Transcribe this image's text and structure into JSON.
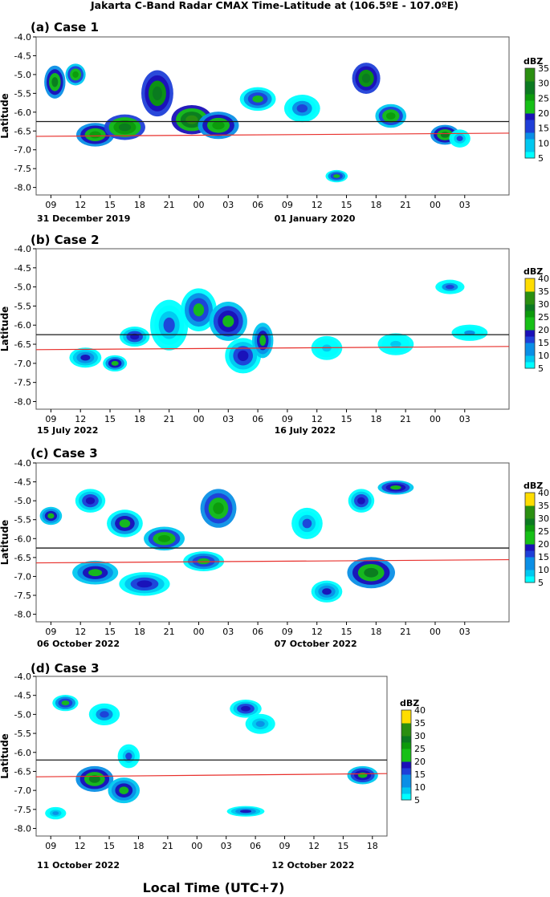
{
  "figure": {
    "title": "Jakarta C-Band Radar CMAX Time-Latitude at (106.5ºE - 107.0ºE)",
    "bottom_label": "Local Time (UTC+7)",
    "ylabel": "Latitude",
    "colorbar_unit": "dBZ"
  },
  "colors": {
    "red_line": "#e8302c",
    "black_line": "#1a1a1a",
    "palette": [
      "#00ffff",
      "#00c8f0",
      "#0a8fe6",
      "#1f3fd8",
      "#1a10b8",
      "#16c016",
      "#0c9a0c",
      "#0b7a20",
      "#2a8f10",
      "#ffdd00"
    ]
  },
  "chart_data": [
    {
      "type": "heatmap",
      "title": "(a) Case 1",
      "ylabel": "Latitude",
      "y_ticks": [
        "-4.0",
        "-4.5",
        "-5.0",
        "-5.5",
        "-6.0",
        "-6.5",
        "-7.0",
        "-7.5",
        "-8.0"
      ],
      "ylim": [
        -8.2,
        -4.0
      ],
      "x_ticks": [
        "09",
        "12",
        "15",
        "18",
        "21",
        "00",
        "03",
        "06",
        "09",
        "12",
        "15",
        "18",
        "21",
        "00",
        "03"
      ],
      "dates": [
        "31 December 2019",
        "01 January 2020"
      ],
      "colorbar": {
        "unit": "dBZ",
        "ticks": [
          "5",
          "10",
          "15",
          "20",
          "25",
          "30",
          "35"
        ],
        "range": [
          5,
          35
        ]
      },
      "black_line_latitude": -6.25,
      "red_line_latitude": -6.6,
      "echo_blobs": [
        {
          "t": 9.4,
          "lat": -5.2,
          "dt": 1.5,
          "dlat": 0.75,
          "dbz": 27
        },
        {
          "t": 11.5,
          "lat": -5.0,
          "dt": 1.4,
          "dlat": 0.45,
          "dbz": 24
        },
        {
          "t": 13.5,
          "lat": -6.6,
          "dt": 3.2,
          "dlat": 0.5,
          "dbz": 26
        },
        {
          "t": 16.5,
          "lat": -6.4,
          "dt": 3.5,
          "dlat": 0.55,
          "dbz": 29
        },
        {
          "t": 19.8,
          "lat": -5.5,
          "dt": 2.6,
          "dlat": 1.1,
          "dbz": 28
        },
        {
          "t": 23.3,
          "lat": -6.2,
          "dt": 3.5,
          "dlat": 0.65,
          "dbz": 31
        },
        {
          "t": 26.0,
          "lat": -6.35,
          "dt": 3.5,
          "dlat": 0.6,
          "dbz": 26
        },
        {
          "t": 30.0,
          "lat": -5.65,
          "dt": 3.0,
          "dlat": 0.5,
          "dbz": 20
        },
        {
          "t": 34.5,
          "lat": -5.9,
          "dt": 3.0,
          "dlat": 0.6,
          "dbz": 15
        },
        {
          "t": 41.0,
          "lat": -5.1,
          "dt": 2.2,
          "dlat": 0.7,
          "dbz": 28
        },
        {
          "t": 43.5,
          "lat": -6.1,
          "dt": 2.5,
          "dlat": 0.5,
          "dbz": 24
        },
        {
          "t": 49.0,
          "lat": -6.6,
          "dt": 2.3,
          "dlat": 0.4,
          "dbz": 27
        },
        {
          "t": 50.5,
          "lat": -6.7,
          "dt": 1.5,
          "dlat": 0.35,
          "dbz": 14
        },
        {
          "t": 38.0,
          "lat": -7.7,
          "dt": 1.6,
          "dlat": 0.2,
          "dbz": 20
        }
      ]
    },
    {
      "type": "heatmap",
      "title": "(b) Case 2",
      "ylabel": "Latitude",
      "y_ticks": [
        "-4.0",
        "-4.5",
        "-5.0",
        "-5.5",
        "-6.0",
        "-6.5",
        "-7.0",
        "-7.5",
        "-8.0"
      ],
      "ylim": [
        -8.2,
        -4.0
      ],
      "x_ticks": [
        "09",
        "12",
        "15",
        "18",
        "21",
        "00",
        "03",
        "06",
        "09",
        "12",
        "15",
        "18",
        "21",
        "00",
        "03"
      ],
      "dates": [
        "15 July 2022",
        "16 July 2022"
      ],
      "colorbar": {
        "unit": "dBZ",
        "ticks": [
          "5",
          "10",
          "15",
          "20",
          "25",
          "30",
          "35",
          "40"
        ],
        "range": [
          5,
          40
        ]
      },
      "black_line_latitude": -6.25,
      "red_line_latitude": -6.6,
      "echo_blobs": [
        {
          "t": 12.5,
          "lat": -6.85,
          "dt": 2.6,
          "dlat": 0.4,
          "dbz": 17
        },
        {
          "t": 15.5,
          "lat": -7.0,
          "dt": 1.8,
          "dlat": 0.3,
          "dbz": 21
        },
        {
          "t": 17.5,
          "lat": -6.3,
          "dt": 2.4,
          "dlat": 0.4,
          "dbz": 18
        },
        {
          "t": 21.0,
          "lat": -6.0,
          "dt": 3.2,
          "dlat": 1.2,
          "dbz": 14
        },
        {
          "t": 24.0,
          "lat": -5.6,
          "dt": 3.0,
          "dlat": 1.0,
          "dbz": 20
        },
        {
          "t": 27.0,
          "lat": -5.9,
          "dt": 3.2,
          "dlat": 0.9,
          "dbz": 23
        },
        {
          "t": 28.5,
          "lat": -6.8,
          "dt": 3.0,
          "dlat": 0.8,
          "dbz": 18
        },
        {
          "t": 30.5,
          "lat": -6.4,
          "dt": 1.5,
          "dlat": 0.8,
          "dbz": 22
        },
        {
          "t": 37.0,
          "lat": -6.6,
          "dt": 2.5,
          "dlat": 0.5,
          "dbz": 10
        },
        {
          "t": 44.0,
          "lat": -6.5,
          "dt": 3.0,
          "dlat": 0.45,
          "dbz": 9
        },
        {
          "t": 49.5,
          "lat": -5.0,
          "dt": 2.3,
          "dlat": 0.25,
          "dbz": 16
        },
        {
          "t": 51.5,
          "lat": -6.2,
          "dt": 3.0,
          "dlat": 0.3,
          "dbz": 11
        }
      ]
    },
    {
      "type": "heatmap",
      "title": "(c) Case 3",
      "ylabel": "Latitude",
      "y_ticks": [
        "-4.0",
        "-4.5",
        "-5.0",
        "-5.5",
        "-6.0",
        "-6.5",
        "-7.0",
        "-7.5",
        "-8.0"
      ],
      "ylim": [
        -8.2,
        -4.0
      ],
      "x_ticks": [
        "09",
        "12",
        "15",
        "18",
        "21",
        "00",
        "03",
        "06",
        "09",
        "12",
        "15",
        "18",
        "21",
        "00",
        "03"
      ],
      "dates": [
        "06 October 2022",
        "07 October 2022"
      ],
      "colorbar": {
        "unit": "dBZ",
        "ticks": [
          "5",
          "10",
          "15",
          "20",
          "25",
          "30",
          "35",
          "40"
        ],
        "range": [
          5,
          40
        ]
      },
      "black_line_latitude": -6.25,
      "red_line_latitude": -6.6,
      "echo_blobs": [
        {
          "t": 9.0,
          "lat": -5.4,
          "dt": 1.6,
          "dlat": 0.35,
          "dbz": 22
        },
        {
          "t": 13.0,
          "lat": -5.0,
          "dt": 2.4,
          "dlat": 0.5,
          "dbz": 18
        },
        {
          "t": 16.5,
          "lat": -5.6,
          "dt": 3.0,
          "dlat": 0.6,
          "dbz": 21
        },
        {
          "t": 20.5,
          "lat": -6.0,
          "dt": 3.5,
          "dlat": 0.5,
          "dbz": 24
        },
        {
          "t": 26.0,
          "lat": -5.2,
          "dt": 3.0,
          "dlat": 0.9,
          "dbz": 25
        },
        {
          "t": 13.5,
          "lat": -6.9,
          "dt": 4.0,
          "dlat": 0.5,
          "dbz": 22
        },
        {
          "t": 18.5,
          "lat": -7.2,
          "dt": 4.5,
          "dlat": 0.5,
          "dbz": 18
        },
        {
          "t": 24.5,
          "lat": -6.6,
          "dt": 3.5,
          "dlat": 0.4,
          "dbz": 20
        },
        {
          "t": 35.0,
          "lat": -5.6,
          "dt": 2.5,
          "dlat": 0.7,
          "dbz": 14
        },
        {
          "t": 40.5,
          "lat": -5.0,
          "dt": 2.0,
          "dlat": 0.5,
          "dbz": 19
        },
        {
          "t": 44.0,
          "lat": -4.65,
          "dt": 3.0,
          "dlat": 0.25,
          "dbz": 23
        },
        {
          "t": 41.5,
          "lat": -6.9,
          "dt": 4.2,
          "dlat": 0.7,
          "dbz": 27
        },
        {
          "t": 37.0,
          "lat": -7.4,
          "dt": 2.5,
          "dlat": 0.45,
          "dbz": 17
        }
      ]
    },
    {
      "type": "heatmap",
      "title": "(d) Case 3",
      "ylabel": "Latitude",
      "y_ticks": [
        "-4.0",
        "-4.5",
        "-5.0",
        "-5.5",
        "-6.0",
        "-6.5",
        "-7.0",
        "-7.5",
        "-8.0"
      ],
      "ylim": [
        -8.2,
        -4.0
      ],
      "x_ticks": [
        "09",
        "12",
        "15",
        "18",
        "21",
        "00",
        "03",
        "06",
        "09",
        "12",
        "15",
        "18"
      ],
      "dates": [
        "11 October 2022",
        "12 October 2022"
      ],
      "colorbar": {
        "unit": "dBZ",
        "ticks": [
          "5",
          "10",
          "15",
          "20",
          "25",
          "30",
          "35",
          "40"
        ],
        "range": [
          5,
          40
        ]
      },
      "black_line_latitude": -6.2,
      "red_line_latitude": -6.6,
      "echo_blobs": [
        {
          "t": 10.5,
          "lat": -4.7,
          "dt": 2.0,
          "dlat": 0.3,
          "dbz": 20
        },
        {
          "t": 14.5,
          "lat": -5.0,
          "dt": 2.5,
          "dlat": 0.45,
          "dbz": 16
        },
        {
          "t": 17.0,
          "lat": -6.1,
          "dt": 1.6,
          "dlat": 0.5,
          "dbz": 14
        },
        {
          "t": 13.5,
          "lat": -6.7,
          "dt": 3.2,
          "dlat": 0.55,
          "dbz": 27
        },
        {
          "t": 16.5,
          "lat": -7.0,
          "dt": 2.6,
          "dlat": 0.55,
          "dbz": 22
        },
        {
          "t": 29.0,
          "lat": -4.85,
          "dt": 2.6,
          "dlat": 0.35,
          "dbz": 19
        },
        {
          "t": 30.5,
          "lat": -5.25,
          "dt": 2.4,
          "dlat": 0.4,
          "dbz": 12
        },
        {
          "t": 29.0,
          "lat": -7.55,
          "dt": 3.2,
          "dlat": 0.15,
          "dbz": 17
        },
        {
          "t": 41.0,
          "lat": -6.6,
          "dt": 2.5,
          "dlat": 0.35,
          "dbz": 23
        },
        {
          "t": 9.5,
          "lat": -7.6,
          "dt": 1.5,
          "dlat": 0.2,
          "dbz": 13
        }
      ]
    }
  ]
}
